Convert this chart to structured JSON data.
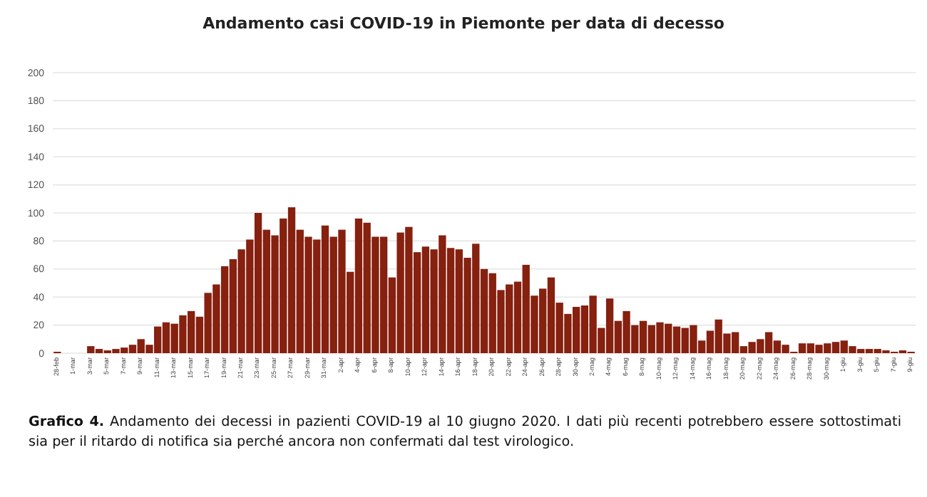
{
  "chart_data": {
    "type": "bar",
    "title": "Andamento casi COVID-19 in Piemonte per data di decesso",
    "categories": [
      "28-feb",
      null,
      "1-mar",
      null,
      "3-mar",
      null,
      "5-mar",
      null,
      "7-mar",
      null,
      "9-mar",
      null,
      "11-mar",
      null,
      "13-mar",
      null,
      "15-mar",
      null,
      "17-mar",
      null,
      "19-mar",
      null,
      "21-mar",
      null,
      "23-mar",
      null,
      "25-mar",
      null,
      "27-mar",
      null,
      "29-mar",
      null,
      "31-mar",
      null,
      "2-apr",
      null,
      "4-apr",
      null,
      "6-apr",
      null,
      "8-apr",
      null,
      "10-apr",
      null,
      "12-apr",
      null,
      "14-apr",
      null,
      "16-apr",
      null,
      "18-apr",
      null,
      "20-apr",
      null,
      "22-apr",
      null,
      "24-apr",
      null,
      "26-apr",
      null,
      "28-apr",
      null,
      "30-apr",
      null,
      "2-mag",
      null,
      "4-mag",
      null,
      "6-mag",
      null,
      "8-mag",
      null,
      "10-mag",
      null,
      "12-mag",
      null,
      "14-mag",
      null,
      "16-mag",
      null,
      "18-mag",
      null,
      "20-mag",
      null,
      "22-mag",
      null,
      "24-mag",
      null,
      "26-mag",
      null,
      "28-mag",
      null,
      "30-mag",
      null,
      "1-giu",
      null,
      "3-giu",
      null,
      "5-giu",
      null,
      "7-giu",
      null,
      "9-giu"
    ],
    "values": [
      1,
      0,
      0,
      0,
      5,
      3,
      2,
      3,
      4,
      6,
      10,
      6,
      19,
      22,
      21,
      27,
      30,
      26,
      43,
      49,
      62,
      67,
      74,
      81,
      100,
      88,
      84,
      96,
      104,
      88,
      83,
      81,
      91,
      83,
      88,
      58,
      96,
      93,
      83,
      83,
      54,
      86,
      90,
      72,
      76,
      74,
      84,
      75,
      74,
      68,
      78,
      60,
      57,
      45,
      49,
      51,
      63,
      41,
      46,
      54,
      36,
      28,
      33,
      34,
      41,
      18,
      39,
      23,
      30,
      20,
      23,
      20,
      22,
      21,
      19,
      18,
      20,
      9,
      16,
      24,
      14,
      15,
      5,
      8,
      10,
      15,
      9,
      6,
      1,
      7,
      7,
      6,
      7,
      8,
      9,
      5,
      3,
      3,
      3,
      2,
      1,
      2,
      1
    ],
    "color": "#86200f",
    "ylim": [
      0,
      200
    ],
    "yticks": [
      0,
      20,
      40,
      60,
      80,
      100,
      120,
      140,
      160,
      180,
      200
    ],
    "grid": "y",
    "annotations": [
      "Grafico 4.",
      "Andamento dei decessi in pazienti COVID-19 al 10 giugno 2020. I dati più recenti potrebbero essere sottostimati sia per il ritardo di notifica sia perché ancora non confermati dal test virologico."
    ]
  }
}
